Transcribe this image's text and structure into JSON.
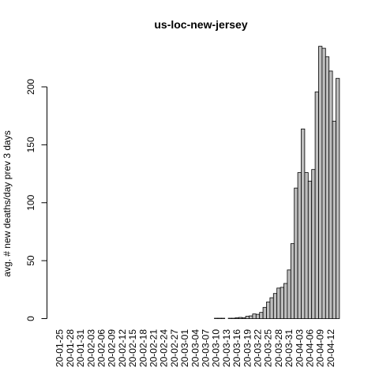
{
  "chart_data": {
    "type": "bar",
    "title": "us-loc-new-jersey",
    "xlabel": "",
    "ylabel": "avg. # new deaths/day prev  3  days",
    "ylim": [
      0,
      240
    ],
    "yticks": [
      0,
      50,
      100,
      150,
      200
    ],
    "grid": false,
    "legend": "none",
    "bar_color": "#bebebe",
    "x_tick_labels": [
      "20-01-25",
      "20-01-28",
      "20-01-31",
      "20-02-03",
      "20-02-06",
      "20-02-09",
      "20-02-12",
      "20-02-15",
      "20-02-18",
      "20-02-21",
      "20-02-24",
      "20-02-27",
      "20-03-01",
      "20-03-04",
      "20-03-07",
      "20-03-10",
      "20-03-13",
      "20-03-16",
      "20-03-19",
      "20-03-22",
      "20-03-25",
      "20-03-28",
      "20-03-31",
      "20-04-03",
      "20-04-06",
      "20-04-09",
      "20-04-12"
    ],
    "categories": [
      "20-01-25",
      "20-01-26",
      "20-01-27",
      "20-01-28",
      "20-01-29",
      "20-01-30",
      "20-01-31",
      "20-02-01",
      "20-02-02",
      "20-02-03",
      "20-02-04",
      "20-02-05",
      "20-02-06",
      "20-02-07",
      "20-02-08",
      "20-02-09",
      "20-02-10",
      "20-02-11",
      "20-02-12",
      "20-02-13",
      "20-02-14",
      "20-02-15",
      "20-02-16",
      "20-02-17",
      "20-02-18",
      "20-02-19",
      "20-02-20",
      "20-02-21",
      "20-02-22",
      "20-02-23",
      "20-02-24",
      "20-02-25",
      "20-02-26",
      "20-02-27",
      "20-02-28",
      "20-02-29",
      "20-03-01",
      "20-03-02",
      "20-03-03",
      "20-03-04",
      "20-03-05",
      "20-03-06",
      "20-03-07",
      "20-03-08",
      "20-03-09",
      "20-03-10",
      "20-03-11",
      "20-03-12",
      "20-03-13",
      "20-03-14",
      "20-03-15",
      "20-03-16",
      "20-03-17",
      "20-03-18",
      "20-03-19",
      "20-03-20",
      "20-03-21",
      "20-03-22",
      "20-03-23",
      "20-03-24",
      "20-03-25",
      "20-03-26",
      "20-03-27",
      "20-03-28",
      "20-03-29",
      "20-03-30",
      "20-03-31",
      "20-04-01",
      "20-04-02",
      "20-04-03",
      "20-04-04",
      "20-04-05",
      "20-04-06",
      "20-04-07",
      "20-04-08",
      "20-04-09",
      "20-04-10",
      "20-04-11",
      "20-04-12",
      "20-04-13",
      "20-04-14"
    ],
    "values": [
      0,
      0,
      0,
      0,
      0,
      0,
      0,
      0,
      0,
      0,
      0,
      0,
      0,
      0,
      0,
      0,
      0,
      0,
      0,
      0,
      0,
      0,
      0,
      0,
      0,
      0,
      0,
      0,
      0,
      0,
      0,
      0,
      0,
      0,
      0,
      0,
      0,
      0,
      0,
      0,
      0,
      0,
      0,
      0,
      0,
      0.33,
      0.33,
      0.33,
      0,
      0.33,
      0.33,
      0.67,
      1,
      0.67,
      2,
      2.33,
      4,
      3.67,
      5.33,
      9.67,
      14.33,
      18,
      21.67,
      26.33,
      27,
      30.33,
      42,
      64.67,
      112.67,
      126,
      163.67,
      126,
      118.67,
      128.67,
      195.67,
      235,
      233.33,
      226,
      213.67,
      170.33,
      207.33
    ]
  }
}
